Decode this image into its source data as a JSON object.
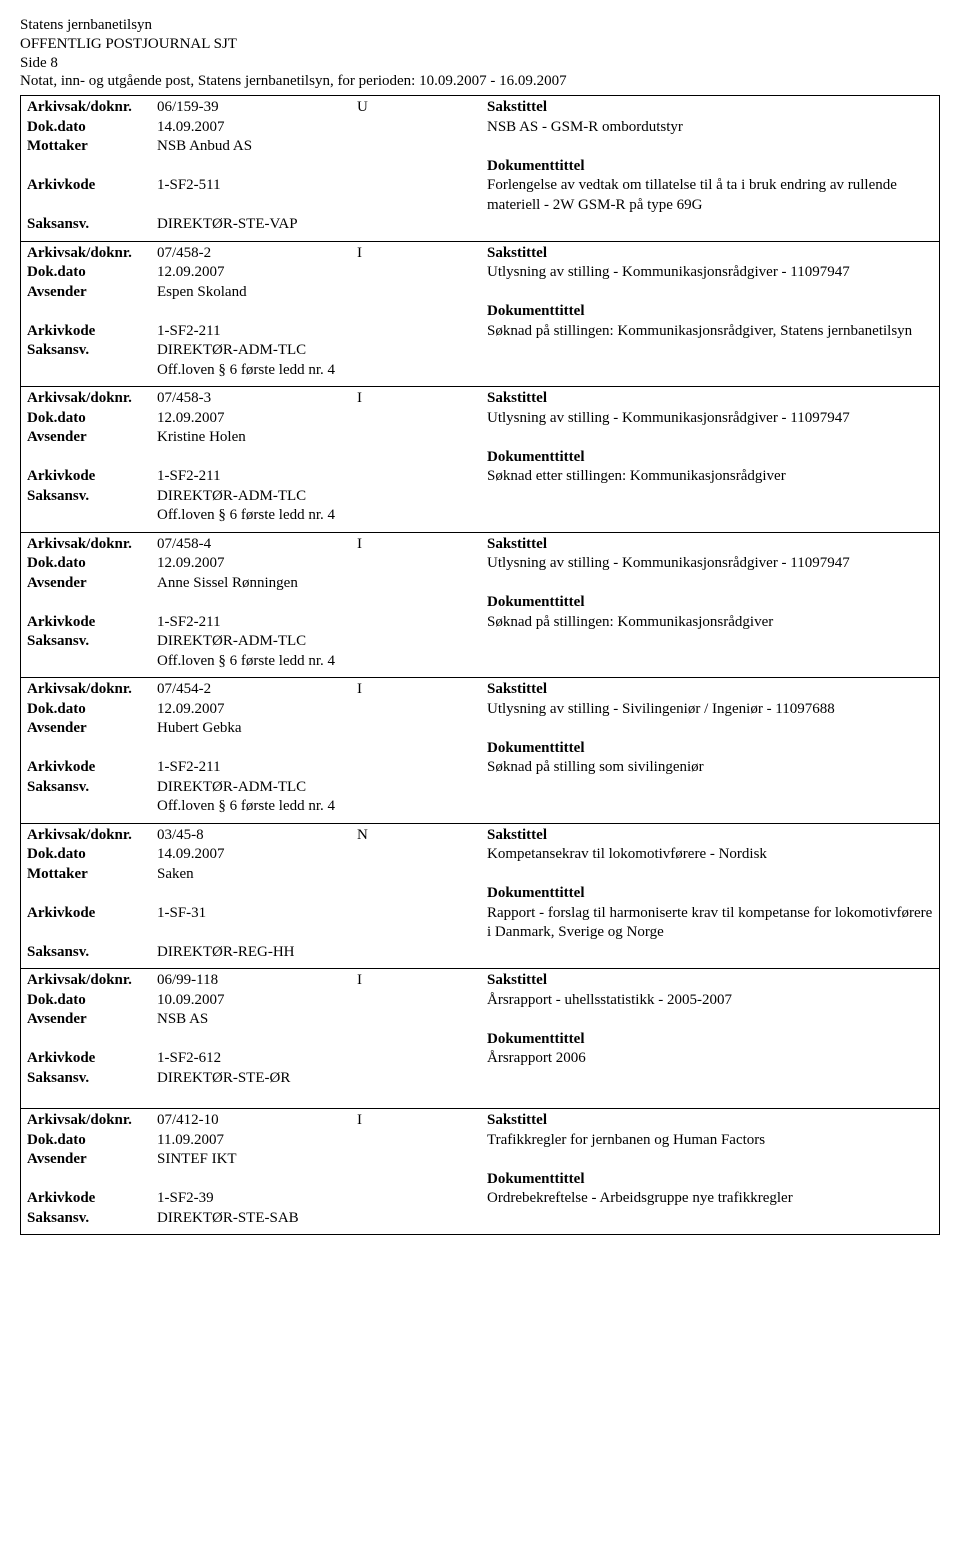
{
  "header": {
    "org": "Statens jernbanetilsyn",
    "title": "OFFENTLIG POSTJOURNAL SJT",
    "page": "Side 8",
    "subtitle": "Notat, inn- og utgående post, Statens jernbanetilsyn, for perioden: 10.09.2007 - 16.09.2007"
  },
  "labels": {
    "arkiv": "Arkivsak/doknr.",
    "dokdato": "Dok.dato",
    "mottaker": "Mottaker",
    "avsender": "Avsender",
    "arkivkode": "Arkivkode",
    "saksansv": "Saksansv.",
    "sakstittel": "Sakstittel",
    "dokumenttittel": "Dokumenttittel"
  },
  "entries": [
    {
      "doknr": "06/159-39",
      "flag": "U",
      "dokdato": "14.09.2007",
      "party_label": "Mottaker",
      "party": "NSB Anbud AS",
      "arkivkode": "1-SF2-511",
      "saksansv": "DIREKTØR-STE-VAP",
      "off": "",
      "sakstittel": "NSB AS - GSM-R ombordutstyr",
      "doktittel": "Forlengelse av vedtak om tillatelse til å ta i bruk endring av rullende materiell - 2W GSM-R på type 69G"
    },
    {
      "doknr": "07/458-2",
      "flag": "I",
      "dokdato": "12.09.2007",
      "party_label": "Avsender",
      "party": "Espen Skoland",
      "arkivkode": "1-SF2-211",
      "saksansv": "DIREKTØR-ADM-TLC",
      "off": "Off.loven § 6 første ledd nr. 4",
      "sakstittel": "Utlysning av stilling - Kommunikasjonsrådgiver - 11097947",
      "doktittel": "Søknad på stillingen: Kommunikasjonsrådgiver, Statens jernbanetilsyn"
    },
    {
      "doknr": "07/458-3",
      "flag": "I",
      "dokdato": "12.09.2007",
      "party_label": "Avsender",
      "party": "Kristine Holen",
      "arkivkode": "1-SF2-211",
      "saksansv": "DIREKTØR-ADM-TLC",
      "off": "Off.loven § 6 første ledd nr. 4",
      "sakstittel": "Utlysning av stilling - Kommunikasjonsrådgiver - 11097947",
      "doktittel": "Søknad etter stillingen: Kommunikasjonsrådgiver"
    },
    {
      "doknr": "07/458-4",
      "flag": "I",
      "dokdato": "12.09.2007",
      "party_label": "Avsender",
      "party": "Anne Sissel Rønningen",
      "arkivkode": "1-SF2-211",
      "saksansv": "DIREKTØR-ADM-TLC",
      "off": "Off.loven § 6 første ledd nr. 4",
      "sakstittel": "Utlysning av stilling - Kommunikasjonsrådgiver - 11097947",
      "doktittel": "Søknad på stillingen: Kommunikasjonsrådgiver"
    },
    {
      "doknr": "07/454-2",
      "flag": "I",
      "dokdato": "12.09.2007",
      "party_label": "Avsender",
      "party": "Hubert Gebka",
      "arkivkode": "1-SF2-211",
      "saksansv": "DIREKTØR-ADM-TLC",
      "off": "Off.loven § 6 første ledd nr. 4",
      "sakstittel": "Utlysning av stilling - Sivilingeniør / Ingeniør - 11097688",
      "doktittel": "Søknad på stilling som sivilingeniør"
    },
    {
      "doknr": "03/45-8",
      "flag": "N",
      "dokdato": "14.09.2007",
      "party_label": "Mottaker",
      "party": "Saken",
      "arkivkode": "1-SF-31",
      "saksansv": "DIREKTØR-REG-HH",
      "off": "",
      "sakstittel": "Kompetansekrav til lokomotivførere - Nordisk",
      "doktittel": "Rapport - forslag til harmoniserte krav til kompetanse for lokomotivførere i Danmark, Sverige og Norge"
    },
    {
      "doknr": "06/99-118",
      "flag": "I",
      "dokdato": "10.09.2007",
      "party_label": "Avsender",
      "party": "NSB AS",
      "arkivkode": "1-SF2-612",
      "saksansv": "DIREKTØR-STE-ØR",
      "off": "",
      "sakstittel": "Årsrapport - uhellsstatistikk - 2005-2007",
      "doktittel": "Årsrapport 2006"
    },
    {
      "gap_before": true,
      "doknr": "07/412-10",
      "flag": "I",
      "dokdato": "11.09.2007",
      "party_label": "Avsender",
      "party": "SINTEF IKT",
      "arkivkode": "1-SF2-39",
      "saksansv": "DIREKTØR-STE-SAB",
      "off": "",
      "sakstittel": "Trafikkregler for jernbanen og Human Factors",
      "doktittel": "Ordrebekreftelse - Arbeidsgruppe nye trafikkregler"
    }
  ]
}
